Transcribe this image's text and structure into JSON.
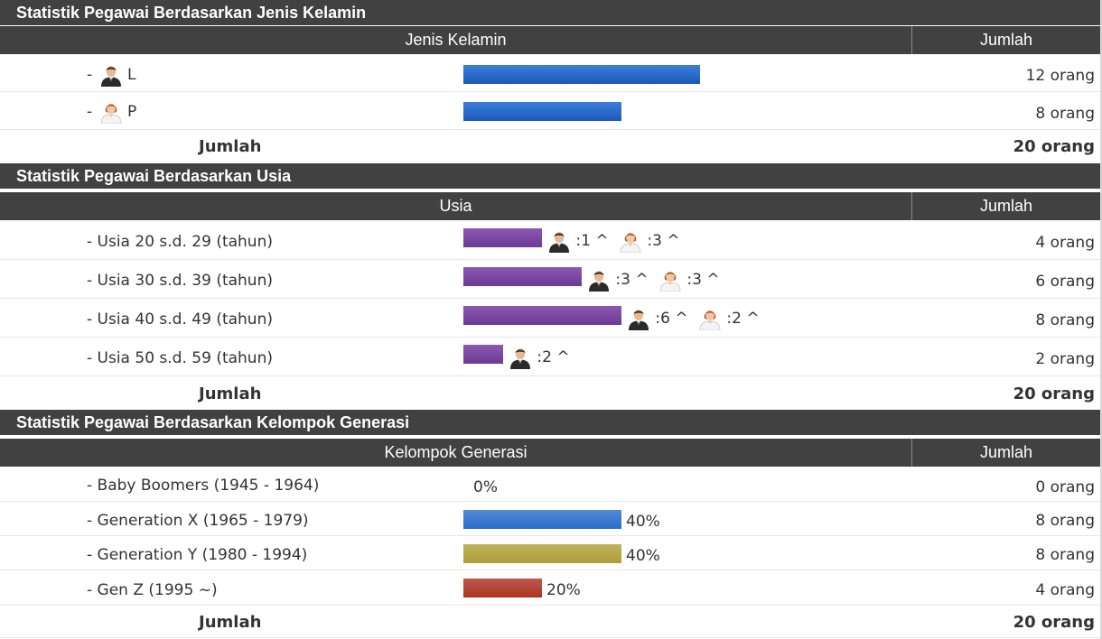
{
  "gender": {
    "title": "Statistik Pegawai Berdasarkan Jenis Kelamin",
    "col_label": "Jenis Kelamin",
    "col_count": "Jumlah",
    "rows": [
      {
        "label": "L",
        "count": "12 orang",
        "value": 12
      },
      {
        "label": "P",
        "count": "8 orang",
        "value": 8
      }
    ],
    "total_label": "Jumlah",
    "total": "20 orang"
  },
  "age": {
    "title": "Statistik Pegawai Berdasarkan Usia",
    "col_label": "Usia",
    "col_count": "Jumlah",
    "rows": [
      {
        "label": "- Usia 20 s.d. 29 (tahun)",
        "male": ":1 ^",
        "female": ":3 ^",
        "count": "4 orang",
        "value": 4
      },
      {
        "label": "- Usia 30 s.d. 39 (tahun)",
        "male": ":3 ^",
        "female": ":3 ^",
        "count": "6 orang",
        "value": 6
      },
      {
        "label": "- Usia 40 s.d. 49 (tahun)",
        "male": ":6 ^",
        "female": ":2 ^",
        "count": "8 orang",
        "value": 8
      },
      {
        "label": "- Usia 50 s.d. 59 (tahun)",
        "male": ":2 ^",
        "count": "2 orang",
        "value": 2
      }
    ],
    "total_label": "Jumlah",
    "total": "20 orang"
  },
  "generation": {
    "title": "Statistik Pegawai Berdasarkan Kelompok Generasi",
    "col_label": "Kelompok Generasi",
    "col_count": "Jumlah",
    "rows": [
      {
        "label": "- Baby Boomers (1945 - 1964)",
        "pct": "0%",
        "count": "0 orang",
        "value": 0,
        "color": "none"
      },
      {
        "label": "- Generation X (1965 - 1979)",
        "pct": "40%",
        "count": "8 orang",
        "value": 8,
        "color": "#2a6ccb"
      },
      {
        "label": "- Generation Y (1980 - 1994)",
        "pct": "40%",
        "count": "8 orang",
        "value": 8,
        "color": "#ae9f36"
      },
      {
        "label": "- Gen Z (1995 ~)",
        "pct": "20%",
        "count": "4 orang",
        "value": 4,
        "color": "#ad3220"
      }
    ],
    "total_label": "Jumlah",
    "total": "20 orang"
  },
  "bar_scale_max": 12,
  "icons": {
    "male": "male-user-icon",
    "female": "female-user-icon"
  },
  "dash": "-"
}
